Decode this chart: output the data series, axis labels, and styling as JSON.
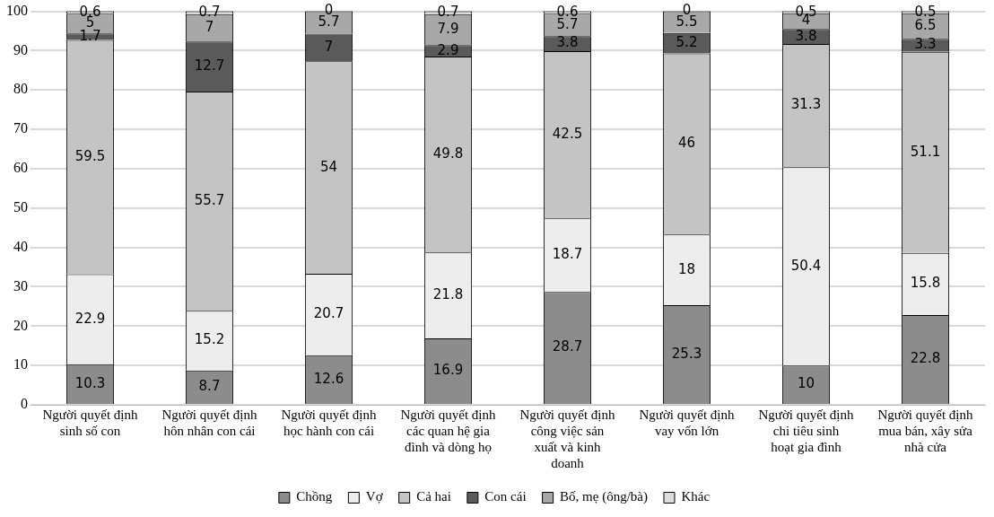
{
  "chart_data": {
    "type": "bar",
    "stacked": true,
    "categories": [
      "Người quyết định sinh số con",
      "Người quyết định hôn nhân con cái",
      "Người quyết định học hành con cái",
      "Người quyết định các quan hệ gia đình và dòng họ",
      "Người quyết định công việc sản xuất và kinh doanh",
      "Người quyết định vay vốn lớn",
      "Người quyết định chi tiêu sinh hoạt gia đình",
      "Người quyết định mua bán, xây sửa nhà cửa"
    ],
    "series": [
      {
        "name": "Chồng",
        "color": "#8c8c8c",
        "values": [
          10.3,
          8.7,
          12.6,
          16.9,
          28.7,
          25.3,
          10,
          22.8
        ]
      },
      {
        "name": "Vợ",
        "color": "#ededed",
        "values": [
          22.9,
          15.2,
          20.7,
          21.8,
          18.7,
          18,
          50.4,
          15.8
        ]
      },
      {
        "name": "Cả hai",
        "color": "#c4c4c4",
        "values": [
          59.5,
          55.7,
          54,
          49.8,
          42.5,
          46,
          31.3,
          51.1
        ]
      },
      {
        "name": "Con cái",
        "color": "#5a5a5a",
        "values": [
          1.7,
          12.7,
          7,
          2.9,
          3.8,
          5.2,
          3.8,
          3.3
        ]
      },
      {
        "name": "Bố, mẹ (ông/bà)",
        "color": "#a8a8a8",
        "values": [
          5,
          7,
          5.7,
          7.9,
          5.7,
          5.5,
          4,
          6.5
        ]
      },
      {
        "name": "Khác",
        "color": "#dcdcdc",
        "values": [
          0.6,
          0.7,
          0,
          0.7,
          0.6,
          0,
          0.5,
          0.5
        ]
      }
    ],
    "ylim": [
      0,
      100
    ],
    "yticks": [
      0,
      10,
      20,
      30,
      40,
      50,
      60,
      70,
      80,
      90,
      100
    ],
    "grid": "y",
    "legend": "bottom",
    "data_labels": true
  }
}
